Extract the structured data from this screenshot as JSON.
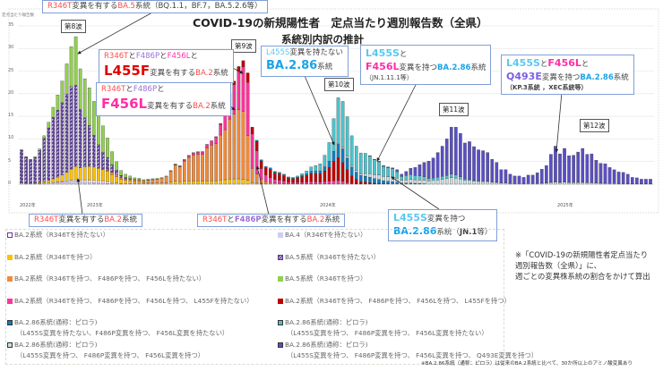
{
  "title": "COVID-19の新規陽性者　定点当たり週別報告数（全県）",
  "subtitle": "系統別内訳の推計",
  "y_axis_label": "定点当たり報告数",
  "waves": [
    "第8波",
    "第9波",
    "第10波",
    "第11波",
    "第12波"
  ],
  "years": [
    "2022年",
    "2023年",
    "2024年",
    "2025年"
  ],
  "annotations": {
    "ba5_r346t": {
      "p1": "R346T",
      "p2": "変異を有する",
      "p3": "BA.5",
      "p4": "系統（BQ.1.1，BF.7，BA.5.2.6等）"
    },
    "ba2_l455f": {
      "p1": "R346T",
      "p2": "と",
      "p3": "F486P",
      "p4": "と",
      "p5": "F456L",
      "p6": "と",
      "p7": "L455F",
      "p8": "変異を有する",
      "p9": "BA.2",
      "p10": "系統"
    },
    "ba2_f456l": {
      "p1": "R346T",
      "p2": "と",
      "p3": "F486P",
      "p4": "と",
      "p5": "F456L",
      "p6": "変異を有する",
      "p7": "BA.2",
      "p8": "系統"
    },
    "ba286_no_l455s": {
      "p1": "L455S",
      "p2": "変異を持たない",
      "p3": "BA.2.86",
      "p4": "系統"
    },
    "ba286_f456l": {
      "p1": "L455S",
      "p2": "と",
      "p3": "F456L",
      "p4": "変異を持つ",
      "p5": "BA.2.86",
      "p6": "系統",
      "p7": "（JN.1.11.1等）"
    },
    "ba286_q493e": {
      "p1": "L455S",
      "p2": "と",
      "p3": "F456L",
      "p4": "と",
      "p5": "Q493E",
      "p6": "変異を持つ",
      "p7": "BA.2.86",
      "p8": "系統",
      "p9": "（KP.3系統 ，XEC系統等）"
    },
    "ba2_r346t": {
      "p1": "R346T",
      "p2": "変異を有する",
      "p3": "BA.2",
      "p4": "系統"
    },
    "ba2_f486p": {
      "p1": "R346T",
      "p2": "と",
      "p3": "F486P",
      "p4": "変異を有する",
      "p5": "BA.2",
      "p6": "系統"
    },
    "ba286_l455s": {
      "p1": "L455S",
      "p2": "変異を持つ",
      "p3": "BA.2.86",
      "p4": "系統（",
      "p5": "JN.1",
      "p6": "等）"
    }
  },
  "legend": {
    "left": [
      {
        "key": "ba2_no346",
        "label": "BA.2系統（R346Tを持たない）"
      },
      {
        "key": "ba2_346",
        "label": "BA.2系統（R346Tを持つ）"
      },
      {
        "key": "ba2_486",
        "label": "BA.2系統（R346Tを持つ、 F486Pを持つ、 F456Lを持たない）"
      },
      {
        "key": "ba2_456",
        "label": "BA.2系統（R346Tを持つ、 F486Pを持つ、 F456Lを持つ、 L455Fを持たない）"
      },
      {
        "key": "ba286_no455s",
        "label": "BA.2.86系統(通称：ピロラ)",
        "sub": "（L455S変異を持たない、F486P変異を持つ、 F456L変異を持たない）"
      },
      {
        "key": "ba286_455s_456",
        "label": "BA.2.86系統(通称：ピロラ)",
        "sub": "（L455S変異を持つ、 F486P変異を持つ、 F456L変異を持つ）"
      }
    ],
    "right": [
      {
        "key": "ba4",
        "label": "BA.4（R346Tを持たない）"
      },
      {
        "key": "ba5_no346",
        "label": "BA.5系統（R346Tを持たない）"
      },
      {
        "key": "ba5_346",
        "label": "BA.5系統（R346Tを持つ）"
      },
      {
        "key": "ba2_455f",
        "label": "BA.2系統（R346Tを持つ、 F486Pを持つ、 F456Lを持つ、 L455Fを持つ）"
      },
      {
        "key": "ba286_455s",
        "label": "BA.2.86系統(通称：ピロラ)",
        "sub": "（L455S変異を持つ、 F486P変異を持つ、 F456L変異を持たない）"
      },
      {
        "key": "ba286_q493e",
        "label": "BA.2.86系統(通称：ピロラ)",
        "sub": "（L455S変異を持つ、 F486P変異を持つ、 F456L変異を持つ、 Q493E変異を持つ）"
      }
    ]
  },
  "note": [
    "※「COVID-19の新規陽性者定点当たり",
    "週別報告数（全県）」に、",
    "週ごとの変異株系統の割合をかけて算出"
  ],
  "footnote": "※BA.2.86系統（通称：ピロラ）は従来のBA.2系統と比べて、30か所以上のアミノ酸変異あり",
  "colors": {
    "ba2_no346": "#ffffff",
    "ba2_346": "#ffc000",
    "ba2_486": "#f28a3a",
    "ba2_456": "#ff3399",
    "ba4": "#cdcdf5",
    "ba5_no346": "#5b3d96",
    "ba5_346": "#92d050",
    "ba2_455f": "#c00000",
    "ba286_no455s": "#0f7dbd",
    "ba286_455s": "#4cc3cc",
    "ba286_455s_456": "#c9dde2",
    "ba286_q493e": "#5a4fc4"
  },
  "chart_data": {
    "type": "bar",
    "stacked": true,
    "title": "COVID-19の新規陽性者　定点当たり週別報告数（全県） 系統別内訳の推計",
    "ylabel": "定点当たり報告数",
    "ylim": [
      0,
      35
    ],
    "yticks": [
      0,
      5,
      10,
      15,
      20,
      25,
      30,
      35
    ],
    "grid": true,
    "x": "weekly, 2022 – 2025 (140 weeks)",
    "totals": [
      7.6,
      6.1,
      5.5,
      6.1,
      7.8,
      10.7,
      13.7,
      17,
      19.7,
      22.8,
      26.6,
      30.4,
      32.6,
      25.5,
      23.3,
      21.3,
      18.3,
      15.3,
      12.9,
      10.2,
      7.2,
      5.0,
      3.0,
      2.2,
      1.8,
      1.4,
      1.3,
      1.0,
      1.1,
      1.2,
      1.3,
      1.5,
      1.8,
      3.0,
      4.5,
      4.1,
      5.5,
      6.4,
      7.0,
      7.2,
      7.2,
      8.8,
      9.6,
      10.5,
      13.4,
      15.7,
      19.9,
      22.8,
      26.0,
      27.3,
      24.6,
      12.6,
      9.7,
      5.4,
      3.9,
      3.6,
      2.8,
      2.6,
      2.2,
      1.6,
      1.5,
      1.8,
      2.3,
      2.9,
      3.8,
      4.1,
      4.5,
      6.4,
      9.2,
      14.5,
      19.1,
      18.3,
      14.9,
      10.7,
      8.4,
      6.9,
      6.8,
      6.3,
      5.5,
      5.1,
      4.1,
      3.8,
      3.6,
      3.2,
      2.2,
      2.8,
      3.5,
      3.7,
      4.3,
      4.8,
      5.1,
      5.8,
      7.0,
      8.4,
      10.0,
      12.6,
      12.6,
      11.2,
      9.1,
      9.4,
      8.3,
      7.6,
      7.4,
      7.0,
      5.5,
      4.8,
      3.2,
      3.2,
      2.2,
      1.8,
      1.8,
      1.5,
      2.0,
      2.0,
      2.5,
      3.3,
      4.1,
      6.6,
      8.4,
      6.7,
      7.9,
      6.3,
      6.4,
      7.1,
      7.9,
      6.6,
      6.7,
      5.3,
      4.6,
      4.5,
      3.7,
      3.2,
      2.7,
      2.6,
      2.2,
      1.5,
      1.4,
      1.1,
      1.1,
      1.1
    ],
    "stack_order": [
      "ba4",
      "ba2_no346",
      "ba2_346",
      "ba2_486",
      "ba2_456",
      "ba2_455f",
      "ba286_no455s",
      "ba286_455s_456",
      "ba286_455s",
      "ba286_q493e",
      "ba5_no346",
      "ba5_346"
    ],
    "share_keyframes": [
      {
        "week": 0,
        "shares": {
          "ba5_no346": 0.95,
          "ba4": 0.03,
          "ba2_346": 0.01,
          "ba5_346": 0.01
        }
      },
      {
        "week": 5,
        "shares": {
          "ba5_no346": 0.9,
          "ba5_346": 0.05,
          "ba2_346": 0.03,
          "ba4": 0.02
        }
      },
      {
        "week": 12,
        "shares": {
          "ba5_no346": 0.55,
          "ba5_346": 0.33,
          "ba2_346": 0.09,
          "ba4": 0.02,
          "ba2_no346": 0.01
        }
      },
      {
        "week": 18,
        "shares": {
          "ba5_no346": 0.3,
          "ba5_346": 0.45,
          "ba2_346": 0.2,
          "ba4": 0.02,
          "ba2_no346": 0.03
        }
      },
      {
        "week": 24,
        "shares": {
          "ba5_no346": 0.1,
          "ba5_346": 0.3,
          "ba2_346": 0.35,
          "ba2_486": 0.2,
          "ba2_no346": 0.05
        }
      },
      {
        "week": 32,
        "shares": {
          "ba2_346": 0.15,
          "ba2_486": 0.8,
          "ba5_346": 0.05
        }
      },
      {
        "week": 42,
        "shares": {
          "ba2_346": 0.08,
          "ba2_486": 0.82,
          "ba2_456": 0.1
        }
      },
      {
        "week": 49,
        "shares": {
          "ba2_346": 0.04,
          "ba2_486": 0.55,
          "ba2_456": 0.36,
          "ba2_455f": 0.05
        }
      },
      {
        "week": 51,
        "shares": {
          "ba2_346": 0.03,
          "ba2_486": 0.25,
          "ba2_456": 0.6,
          "ba2_455f": 0.12
        }
      },
      {
        "week": 55,
        "shares": {
          "ba2_486": 0.1,
          "ba2_456": 0.3,
          "ba2_455f": 0.5,
          "ba286_no455s": 0.1
        }
      },
      {
        "week": 62,
        "shares": {
          "ba2_486": 0.03,
          "ba2_456": 0.15,
          "ba2_455f": 0.55,
          "ba286_no455s": 0.12,
          "ba286_455s": 0.15
        }
      },
      {
        "week": 69,
        "shares": {
          "ba2_456": 0.05,
          "ba2_455f": 0.3,
          "ba286_no455s": 0.15,
          "ba286_455s": 0.5
        }
      },
      {
        "week": 75,
        "shares": {
          "ba2_455f": 0.08,
          "ba286_no455s": 0.2,
          "ba286_455s": 0.67,
          "ba286_455s_456": 0.05
        }
      },
      {
        "week": 82,
        "shares": {
          "ba286_no455s": 0.15,
          "ba286_455s": 0.5,
          "ba286_455s_456": 0.3,
          "ba286_q493e": 0.05
        }
      },
      {
        "week": 90,
        "shares": {
          "ba286_455s": 0.1,
          "ba286_455s_456": 0.15,
          "ba286_q493e": 0.75
        }
      },
      {
        "week": 100,
        "shares": {
          "ba286_455s": 0.02,
          "ba286_455s_456": 0.08,
          "ba286_q493e": 0.9
        }
      },
      {
        "week": 139,
        "shares": {
          "ba286_455s_456": 0.03,
          "ba286_q493e": 0.97
        }
      }
    ]
  }
}
